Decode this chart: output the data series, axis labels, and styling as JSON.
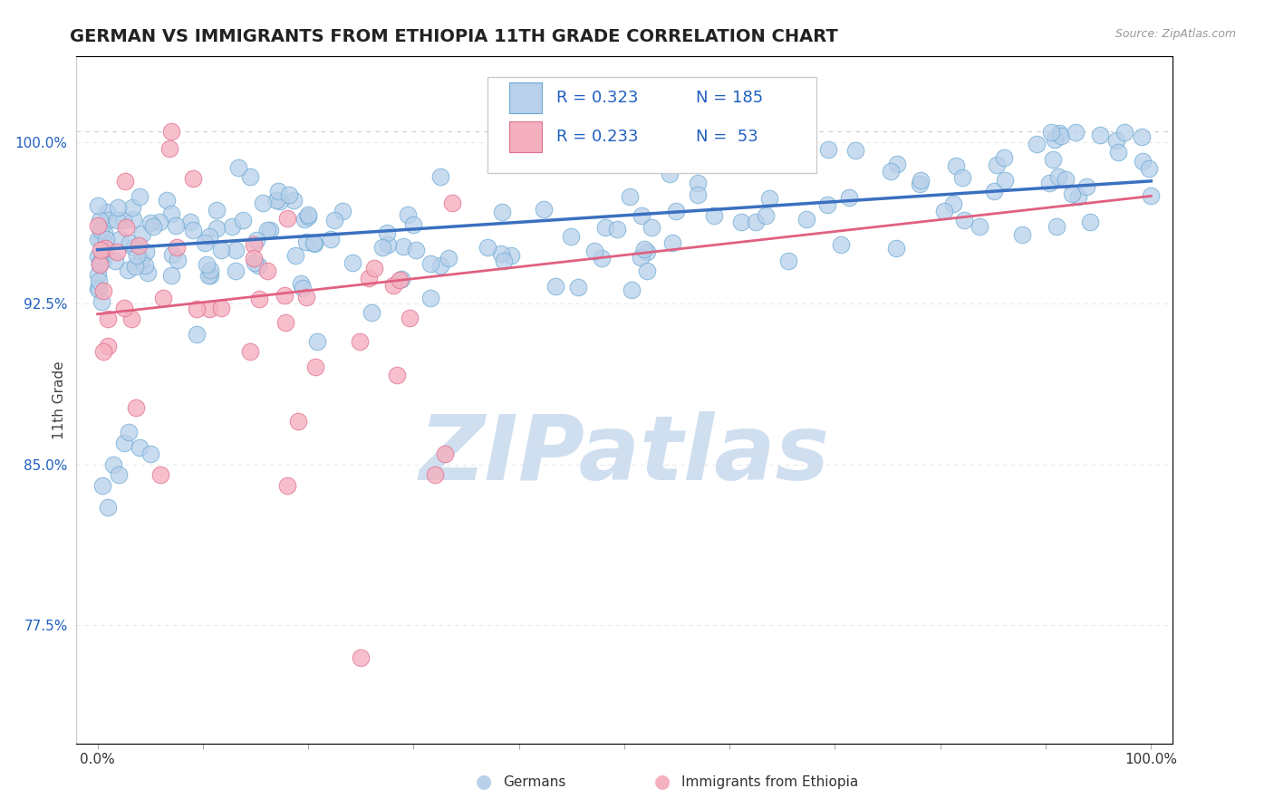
{
  "title": "GERMAN VS IMMIGRANTS FROM ETHIOPIA 11TH GRADE CORRELATION CHART",
  "source_text": "Source: ZipAtlas.com",
  "ylabel": "11th Grade",
  "xlim": [
    -0.02,
    1.02
  ],
  "ylim": [
    0.72,
    1.04
  ],
  "yticks": [
    0.775,
    0.85,
    0.925,
    1.0
  ],
  "ytick_labels": [
    "77.5%",
    "85.0%",
    "92.5%",
    "100.0%"
  ],
  "r_german": 0.323,
  "n_german": 185,
  "r_ethiopia": 0.233,
  "n_ethiopia": 53,
  "blue_fill": "#b8d0ea",
  "blue_edge": "#6aaad4",
  "pink_fill": "#f5b0c0",
  "pink_edge": "#e07090",
  "blue_line": "#3a70c0",
  "pink_line": "#e06080",
  "legend_color": "#2060c0",
  "title_fontsize": 14,
  "watermark_text": "ZIPatlas",
  "watermark_color": "#d0dff0",
  "bg_color": "#ffffff",
  "grid_color": "#e8e8e8"
}
